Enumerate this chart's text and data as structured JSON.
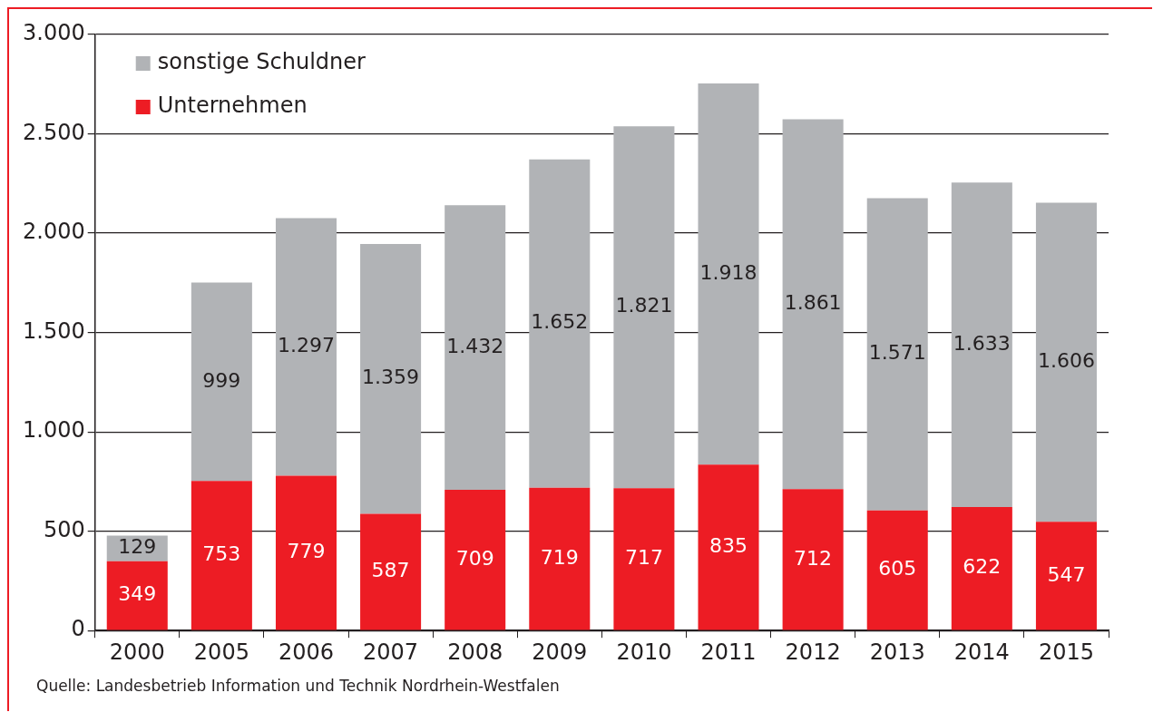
{
  "chart_data": {
    "type": "bar",
    "stacked": true,
    "categories": [
      "2000",
      "2005",
      "2006",
      "2007",
      "2008",
      "2009",
      "2010",
      "2011",
      "2012",
      "2013",
      "2014",
      "2015"
    ],
    "series": [
      {
        "name": "Unternehmen",
        "color": "#ed1c24",
        "values": [
          349,
          753,
          779,
          587,
          709,
          719,
          717,
          835,
          712,
          605,
          622,
          547
        ],
        "value_labels": [
          "349",
          "753",
          "779",
          "587",
          "709",
          "719",
          "717",
          "835",
          "712",
          "605",
          "622",
          "547"
        ]
      },
      {
        "name": "sonstige Schuldner",
        "color": "#b1b3b6",
        "values": [
          129,
          999,
          1297,
          1359,
          1432,
          1652,
          1821,
          1918,
          1861,
          1571,
          1633,
          1606
        ],
        "value_labels": [
          "129",
          "999",
          "1.297",
          "1.359",
          "1.432",
          "1.652",
          "1.821",
          "1.918",
          "1.861",
          "1.571",
          "1.633",
          "1.606"
        ]
      }
    ],
    "ylim": [
      0,
      3000
    ],
    "yticks": [
      0,
      {
        "value": 500,
        "label": "500"
      },
      {
        "value": 1000,
        "label": "1.000"
      },
      {
        "value": 1500,
        "label": "1.500"
      },
      {
        "value": 2000,
        "label": "2.000"
      },
      {
        "value": 2500,
        "label": "2.500"
      },
      {
        "value": 3000,
        "label": "3.000"
      }
    ],
    "grid": "y",
    "legend": "top left",
    "annotations": [
      "Quelle: Landesbetrieb Information und Technik Nordrhein-Westfalen"
    ]
  }
}
